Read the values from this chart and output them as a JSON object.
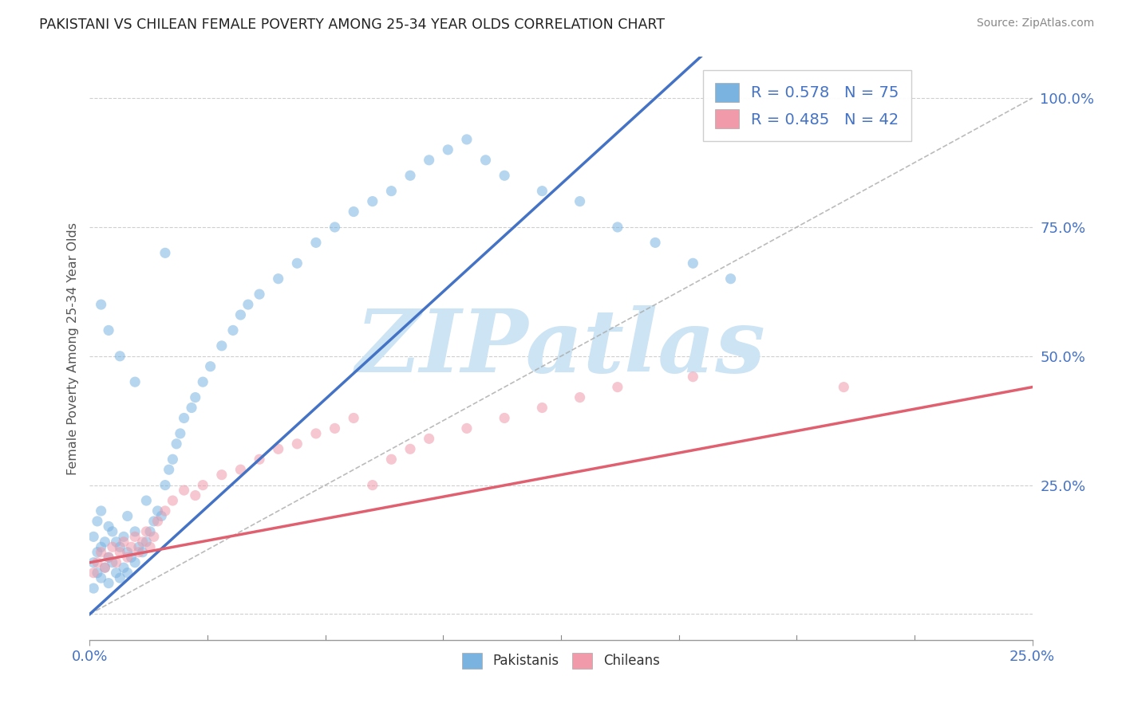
{
  "title": "PAKISTANI VS CHILEAN FEMALE POVERTY AMONG 25-34 YEAR OLDS CORRELATION CHART",
  "source": "Source: ZipAtlas.com",
  "ylabel": "Female Poverty Among 25-34 Year Olds",
  "xmin": 0.0,
  "xmax": 0.25,
  "ymin": -0.05,
  "ymax": 1.08,
  "r_pakistani": 0.578,
  "n_pakistani": 75,
  "r_chilean": 0.485,
  "n_chilean": 42,
  "color_pakistani": "#7ab3e0",
  "color_chilean": "#f09aaa",
  "line_color_pakistani": "#4472c4",
  "line_color_chilean": "#e06070",
  "watermark_text": "ZIPatlas",
  "watermark_color": "#cce4f4",
  "legend_label_pakistani": "Pakistanis",
  "legend_label_chilean": "Chileans",
  "pak_line_x0": 0.0,
  "pak_line_y0": 0.0,
  "pak_line_x1": 0.12,
  "pak_line_y1": 0.8,
  "chi_line_x0": 0.0,
  "chi_line_y0": 0.1,
  "chi_line_x1": 0.25,
  "chi_line_y1": 0.44,
  "ref_line_x0": 0.0,
  "ref_line_y0": 0.0,
  "ref_line_x1": 0.25,
  "ref_line_y1": 1.0,
  "pak_dots_x": [
    0.001,
    0.001,
    0.001,
    0.002,
    0.002,
    0.002,
    0.003,
    0.003,
    0.003,
    0.004,
    0.004,
    0.005,
    0.005,
    0.005,
    0.006,
    0.006,
    0.007,
    0.007,
    0.008,
    0.008,
    0.009,
    0.009,
    0.01,
    0.01,
    0.01,
    0.011,
    0.012,
    0.012,
    0.013,
    0.014,
    0.015,
    0.015,
    0.016,
    0.017,
    0.018,
    0.019,
    0.02,
    0.021,
    0.022,
    0.023,
    0.024,
    0.025,
    0.027,
    0.028,
    0.03,
    0.032,
    0.035,
    0.038,
    0.04,
    0.042,
    0.045,
    0.05,
    0.055,
    0.06,
    0.065,
    0.07,
    0.075,
    0.08,
    0.085,
    0.09,
    0.095,
    0.1,
    0.105,
    0.11,
    0.12,
    0.13,
    0.14,
    0.15,
    0.16,
    0.17,
    0.003,
    0.005,
    0.008,
    0.012,
    0.02
  ],
  "pak_dots_y": [
    0.05,
    0.1,
    0.15,
    0.08,
    0.12,
    0.18,
    0.07,
    0.13,
    0.2,
    0.09,
    0.14,
    0.06,
    0.11,
    0.17,
    0.1,
    0.16,
    0.08,
    0.14,
    0.07,
    0.13,
    0.09,
    0.15,
    0.08,
    0.12,
    0.19,
    0.11,
    0.1,
    0.16,
    0.13,
    0.12,
    0.14,
    0.22,
    0.16,
    0.18,
    0.2,
    0.19,
    0.25,
    0.28,
    0.3,
    0.33,
    0.35,
    0.38,
    0.4,
    0.42,
    0.45,
    0.48,
    0.52,
    0.55,
    0.58,
    0.6,
    0.62,
    0.65,
    0.68,
    0.72,
    0.75,
    0.78,
    0.8,
    0.82,
    0.85,
    0.88,
    0.9,
    0.92,
    0.88,
    0.85,
    0.82,
    0.8,
    0.75,
    0.72,
    0.68,
    0.65,
    0.6,
    0.55,
    0.5,
    0.45,
    0.7
  ],
  "chi_dots_x": [
    0.001,
    0.002,
    0.003,
    0.004,
    0.005,
    0.006,
    0.007,
    0.008,
    0.009,
    0.01,
    0.011,
    0.012,
    0.013,
    0.014,
    0.015,
    0.016,
    0.017,
    0.018,
    0.02,
    0.022,
    0.025,
    0.028,
    0.03,
    0.035,
    0.04,
    0.045,
    0.05,
    0.055,
    0.06,
    0.065,
    0.07,
    0.075,
    0.08,
    0.085,
    0.09,
    0.1,
    0.11,
    0.12,
    0.13,
    0.14,
    0.16,
    0.2
  ],
  "chi_dots_y": [
    0.08,
    0.1,
    0.12,
    0.09,
    0.11,
    0.13,
    0.1,
    0.12,
    0.14,
    0.11,
    0.13,
    0.15,
    0.12,
    0.14,
    0.16,
    0.13,
    0.15,
    0.18,
    0.2,
    0.22,
    0.24,
    0.23,
    0.25,
    0.27,
    0.28,
    0.3,
    0.32,
    0.33,
    0.35,
    0.36,
    0.38,
    0.25,
    0.3,
    0.32,
    0.34,
    0.36,
    0.38,
    0.4,
    0.42,
    0.44,
    0.46,
    0.44
  ]
}
